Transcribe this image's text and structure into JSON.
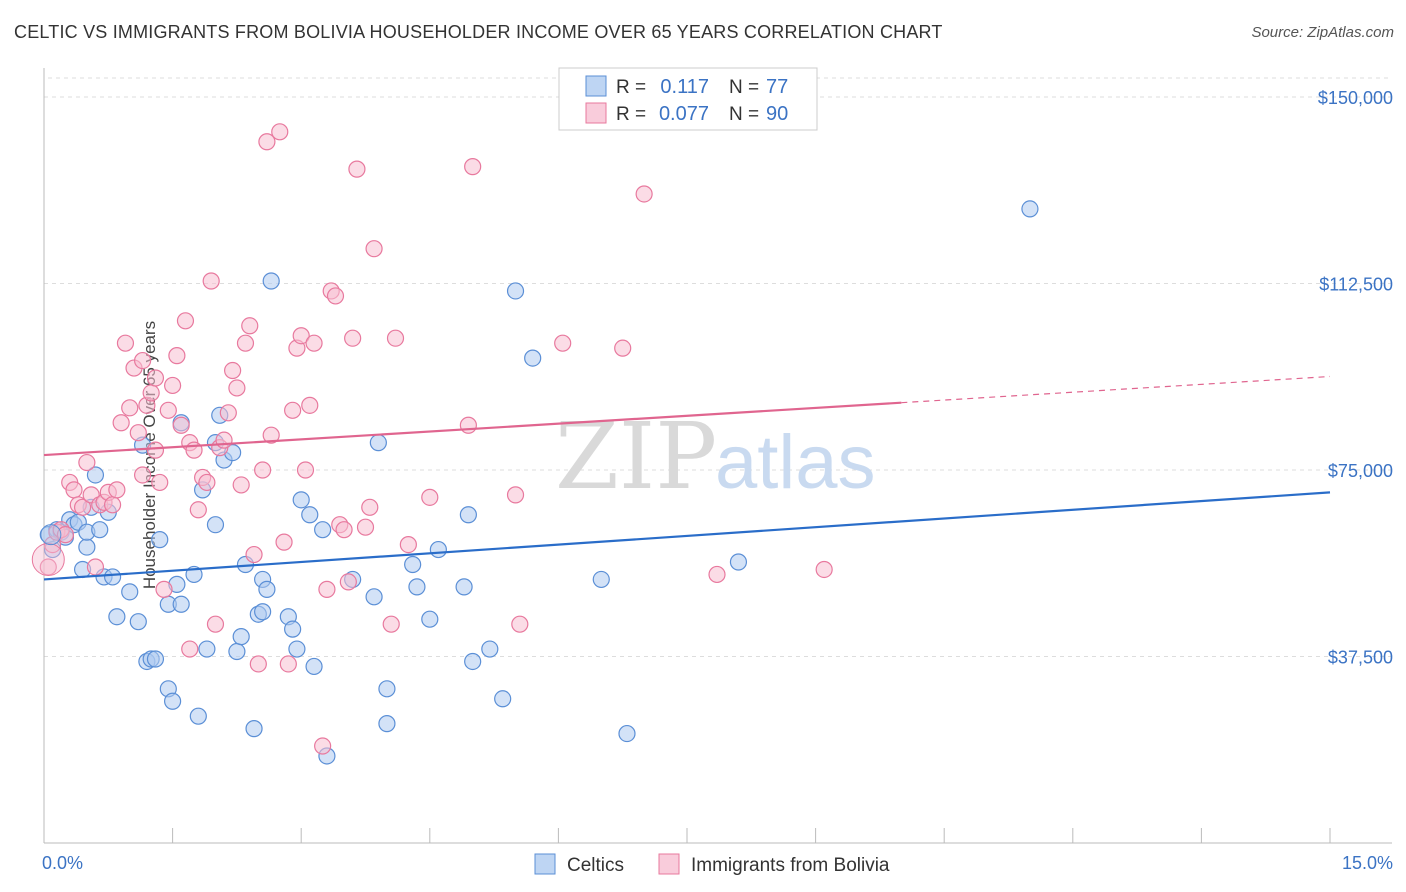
{
  "title": "CELTIC VS IMMIGRANTS FROM BOLIVIA HOUSEHOLDER INCOME OVER 65 YEARS CORRELATION CHART",
  "source": "Source: ZipAtlas.com",
  "watermark": {
    "zip": "ZIP",
    "atlas": "atlas"
  },
  "chart_data": {
    "type": "scatter",
    "xlabel": "",
    "ylabel": "Householder Income Over 65 years",
    "xlim": [
      0,
      15
    ],
    "ylim": [
      0,
      150000
    ],
    "x_tick_labels": [
      "0.0%",
      "15.0%"
    ],
    "y_ticks": [
      37500,
      75000,
      112500,
      150000
    ],
    "y_tick_labels": [
      "$37,500",
      "$75,000",
      "$112,500",
      "$150,000"
    ],
    "grid": true,
    "legend_top": [
      {
        "r_label": "R =",
        "r_value": "0.117",
        "n_label": "N =",
        "n_value": "77"
      },
      {
        "r_label": "R =",
        "r_value": "0.077",
        "n_label": "N =",
        "n_value": "90"
      }
    ],
    "series": [
      {
        "name": "Celtics",
        "color": "#5b8fd6",
        "fill": "#aecbf0",
        "line_color": "#2a6dc9",
        "trend": {
          "x0": 0,
          "y0": 53000,
          "x1": 15,
          "y1": 70500,
          "solid_until": 15
        },
        "points": [
          [
            0.05,
            62000
          ],
          [
            0.1,
            59000
          ],
          [
            0.15,
            63000
          ],
          [
            0.2,
            62500
          ],
          [
            0.25,
            61500
          ],
          [
            0.3,
            65000
          ],
          [
            0.35,
            64000
          ],
          [
            0.4,
            64500
          ],
          [
            0.45,
            55000
          ],
          [
            0.5,
            59500
          ],
          [
            0.5,
            62500
          ],
          [
            0.55,
            67500
          ],
          [
            0.6,
            74000
          ],
          [
            0.65,
            63000
          ],
          [
            0.7,
            53500
          ],
          [
            0.75,
            66500
          ],
          [
            0.8,
            53500
          ],
          [
            0.85,
            45500
          ],
          [
            1.0,
            50500
          ],
          [
            1.1,
            44500
          ],
          [
            1.15,
            80000
          ],
          [
            1.2,
            36500
          ],
          [
            1.25,
            37000
          ],
          [
            1.3,
            37000
          ],
          [
            1.35,
            61000
          ],
          [
            1.45,
            48000
          ],
          [
            1.45,
            31000
          ],
          [
            1.5,
            28500
          ],
          [
            1.55,
            52000
          ],
          [
            1.6,
            48000
          ],
          [
            1.6,
            84500
          ],
          [
            1.75,
            54000
          ],
          [
            1.8,
            25500
          ],
          [
            1.85,
            71000
          ],
          [
            1.9,
            39000
          ],
          [
            2.0,
            64000
          ],
          [
            2.0,
            80500
          ],
          [
            2.05,
            86000
          ],
          [
            2.1,
            77000
          ],
          [
            2.2,
            78500
          ],
          [
            2.25,
            38500
          ],
          [
            2.3,
            41500
          ],
          [
            2.35,
            56000
          ],
          [
            2.45,
            23000
          ],
          [
            2.5,
            46000
          ],
          [
            2.55,
            53000
          ],
          [
            2.55,
            46500
          ],
          [
            2.6,
            51000
          ],
          [
            2.65,
            113000
          ],
          [
            2.85,
            45500
          ],
          [
            2.9,
            43000
          ],
          [
            2.95,
            39000
          ],
          [
            3.0,
            69000
          ],
          [
            3.1,
            66000
          ],
          [
            3.15,
            35500
          ],
          [
            3.25,
            63000
          ],
          [
            3.3,
            17500
          ],
          [
            3.6,
            53000
          ],
          [
            3.85,
            49500
          ],
          [
            3.9,
            80500
          ],
          [
            4.0,
            31000
          ],
          [
            4.0,
            24000
          ],
          [
            4.3,
            56000
          ],
          [
            4.35,
            51500
          ],
          [
            4.5,
            45000
          ],
          [
            4.6,
            59000
          ],
          [
            4.9,
            51500
          ],
          [
            4.95,
            66000
          ],
          [
            5.0,
            36500
          ],
          [
            5.2,
            39000
          ],
          [
            5.35,
            29000
          ],
          [
            5.5,
            111000
          ],
          [
            5.7,
            97500
          ],
          [
            6.5,
            53000
          ],
          [
            6.8,
            22000
          ],
          [
            8.1,
            56500
          ],
          [
            11.5,
            127500
          ]
        ]
      },
      {
        "name": "Immigrants from Bolivia",
        "color": "#e8799e",
        "fill": "#f7bfd2",
        "line_color": "#e0658f",
        "trend": {
          "x0": 0,
          "y0": 78000,
          "x1": 15,
          "y1": 93800,
          "solid_until": 10.0
        },
        "points": [
          [
            0.05,
            55500
          ],
          [
            0.1,
            60000
          ],
          [
            0.15,
            62500
          ],
          [
            0.2,
            63000
          ],
          [
            0.25,
            62000
          ],
          [
            0.3,
            72500
          ],
          [
            0.35,
            71000
          ],
          [
            0.4,
            68000
          ],
          [
            0.45,
            67500
          ],
          [
            0.5,
            76500
          ],
          [
            0.55,
            70000
          ],
          [
            0.6,
            55500
          ],
          [
            0.65,
            68000
          ],
          [
            0.7,
            68500
          ],
          [
            0.75,
            70500
          ],
          [
            0.8,
            68000
          ],
          [
            0.85,
            71000
          ],
          [
            0.9,
            84500
          ],
          [
            0.95,
            100500
          ],
          [
            1.0,
            87500
          ],
          [
            1.05,
            95500
          ],
          [
            1.1,
            82500
          ],
          [
            1.15,
            97000
          ],
          [
            1.15,
            74000
          ],
          [
            1.2,
            88000
          ],
          [
            1.25,
            90500
          ],
          [
            1.3,
            93500
          ],
          [
            1.3,
            79000
          ],
          [
            1.35,
            72500
          ],
          [
            1.4,
            51000
          ],
          [
            1.45,
            87000
          ],
          [
            1.5,
            92000
          ],
          [
            1.55,
            98000
          ],
          [
            1.6,
            84000
          ],
          [
            1.65,
            105000
          ],
          [
            1.7,
            39000
          ],
          [
            1.7,
            80500
          ],
          [
            1.75,
            79000
          ],
          [
            1.8,
            67000
          ],
          [
            1.85,
            73500
          ],
          [
            1.9,
            72500
          ],
          [
            1.95,
            113000
          ],
          [
            2.0,
            44000
          ],
          [
            2.05,
            79500
          ],
          [
            2.1,
            81000
          ],
          [
            2.15,
            86500
          ],
          [
            2.2,
            95000
          ],
          [
            2.25,
            91500
          ],
          [
            2.3,
            72000
          ],
          [
            2.35,
            100500
          ],
          [
            2.4,
            104000
          ],
          [
            2.45,
            58000
          ],
          [
            2.5,
            36000
          ],
          [
            2.55,
            75000
          ],
          [
            2.6,
            141000
          ],
          [
            2.65,
            82000
          ],
          [
            2.75,
            143000
          ],
          [
            2.8,
            60500
          ],
          [
            2.85,
            36000
          ],
          [
            2.9,
            87000
          ],
          [
            2.95,
            99500
          ],
          [
            3.0,
            102000
          ],
          [
            3.05,
            75000
          ],
          [
            3.1,
            88000
          ],
          [
            3.15,
            100500
          ],
          [
            3.25,
            19500
          ],
          [
            3.3,
            51000
          ],
          [
            3.35,
            111000
          ],
          [
            3.4,
            110000
          ],
          [
            3.45,
            64000
          ],
          [
            3.5,
            63000
          ],
          [
            3.55,
            52500
          ],
          [
            3.6,
            101500
          ],
          [
            3.65,
            135500
          ],
          [
            3.75,
            63500
          ],
          [
            3.8,
            67500
          ],
          [
            3.85,
            119500
          ],
          [
            4.05,
            44000
          ],
          [
            4.1,
            101500
          ],
          [
            4.25,
            60000
          ],
          [
            4.5,
            69500
          ],
          [
            4.95,
            84000
          ],
          [
            5.0,
            136000
          ],
          [
            5.5,
            70000
          ],
          [
            5.55,
            44000
          ],
          [
            6.05,
            100500
          ],
          [
            6.75,
            99500
          ],
          [
            7.0,
            130500
          ],
          [
            7.85,
            54000
          ],
          [
            9.1,
            55000
          ]
        ]
      }
    ]
  },
  "legend_bottom": [
    {
      "label": "Celtics"
    },
    {
      "label": "Immigrants from Bolivia"
    }
  ]
}
